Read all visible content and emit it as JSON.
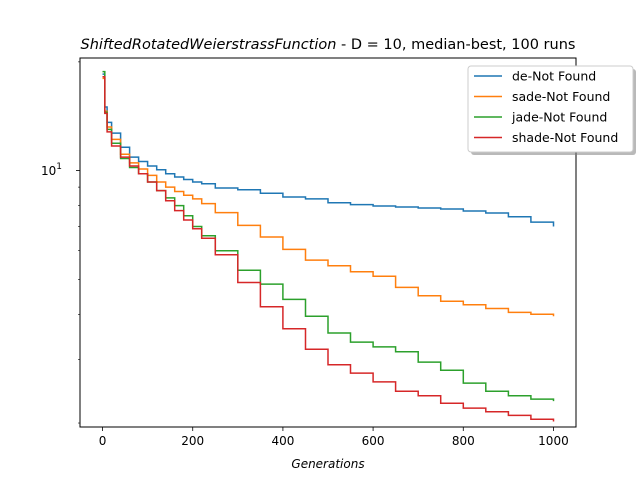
{
  "chart_data": {
    "type": "line",
    "title_italic": "ShiftedRotatedWeierstrassFunction",
    "title_rest": "  - D = 10, median-best, 100 runs",
    "xlabel": "Generations",
    "ylabel": "",
    "y_scale": "log",
    "xlim": [
      -50,
      1050
    ],
    "ylim": [
      1.95,
      20.5
    ],
    "x_ticks": [
      0,
      200,
      400,
      600,
      800,
      1000
    ],
    "x_tick_labels": [
      "0",
      "200",
      "400",
      "600",
      "800",
      "1000"
    ],
    "y_major_tick": 10,
    "y_major_tick_label": "10",
    "y_major_tick_exp": "1",
    "legend_position": "top-right",
    "x": [
      0,
      5,
      10,
      20,
      40,
      60,
      80,
      100,
      120,
      140,
      160,
      180,
      200,
      220,
      250,
      300,
      350,
      400,
      450,
      500,
      550,
      600,
      650,
      700,
      750,
      800,
      850,
      900,
      950,
      1000
    ],
    "series": [
      {
        "name": "de-Not Found",
        "color": "#1f77b4",
        "values": [
          18.5,
          15.0,
          13.6,
          12.7,
          11.6,
          10.9,
          10.6,
          10.3,
          10.05,
          9.8,
          9.6,
          9.45,
          9.3,
          9.2,
          8.95,
          8.85,
          8.65,
          8.45,
          8.35,
          8.15,
          8.05,
          7.98,
          7.93,
          7.88,
          7.83,
          7.73,
          7.63,
          7.45,
          7.2,
          7.0
        ]
      },
      {
        "name": "sade-Not Found",
        "color": "#ff7f0e",
        "values": [
          18.0,
          14.6,
          13.2,
          12.2,
          11.1,
          10.5,
          10.1,
          9.7,
          9.3,
          9.0,
          8.75,
          8.55,
          8.35,
          8.1,
          7.65,
          7.05,
          6.55,
          6.05,
          5.65,
          5.45,
          5.25,
          5.1,
          4.75,
          4.5,
          4.35,
          4.25,
          4.15,
          4.05,
          4.0,
          3.95
        ]
      },
      {
        "name": "jade-Not Found",
        "color": "#2ca02c",
        "values": [
          18.8,
          14.5,
          13.0,
          11.9,
          10.8,
          10.2,
          9.8,
          9.3,
          8.8,
          8.4,
          8.0,
          7.5,
          7.0,
          6.6,
          6.0,
          5.3,
          4.85,
          4.4,
          3.95,
          3.55,
          3.35,
          3.25,
          3.15,
          2.95,
          2.8,
          2.58,
          2.45,
          2.38,
          2.33,
          2.3
        ]
      },
      {
        "name": "shade-Not Found",
        "color": "#d62728",
        "values": [
          18.2,
          14.4,
          12.8,
          11.7,
          10.9,
          10.3,
          9.8,
          9.3,
          8.8,
          8.25,
          7.75,
          7.3,
          6.9,
          6.5,
          5.85,
          4.9,
          4.2,
          3.65,
          3.2,
          2.9,
          2.75,
          2.6,
          2.45,
          2.38,
          2.27,
          2.2,
          2.15,
          2.1,
          2.05,
          2.02
        ]
      }
    ]
  }
}
